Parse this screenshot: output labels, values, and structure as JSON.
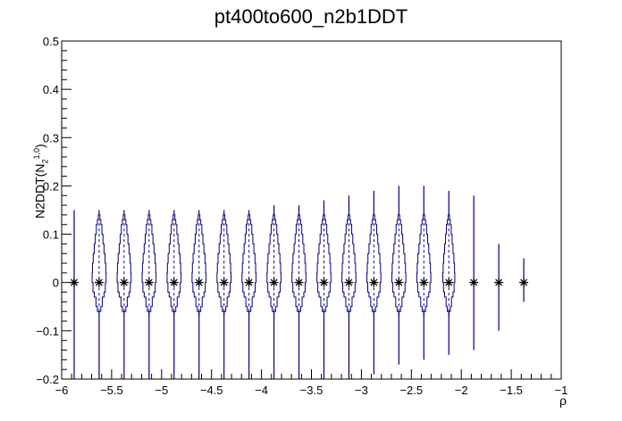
{
  "chart_data": {
    "type": "violin",
    "title": "pt400to600_n2b1DDT",
    "xlabel": "ρ",
    "ylabel": {
      "base": "N2DDT(N",
      "sub": "2",
      "sup": "1,0",
      "close": ")"
    },
    "xlim": [
      -6,
      -1
    ],
    "ylim": [
      -0.2,
      0.5
    ],
    "xticks": [
      -6,
      -5.5,
      -5,
      -4.5,
      -4,
      -3.5,
      -3,
      -2.5,
      -2,
      -1.5,
      -1
    ],
    "xtick_labels": [
      "−6",
      "−5.5",
      "−5",
      "−4.5",
      "−4",
      "−3.5",
      "−3",
      "−2.5",
      "−2",
      "−1.5",
      "−1"
    ],
    "yticks": [
      -0.2,
      -0.1,
      0,
      0.1,
      0.2,
      0.3,
      0.4,
      0.5
    ],
    "ytick_labels": [
      "−0.2",
      "−0.1",
      "0",
      "0.1",
      "0.2",
      "0.3",
      "0.4",
      "0.5"
    ],
    "grid": false,
    "colors": {
      "violin": "#00007f",
      "median": "#000000",
      "axis": "#000000"
    },
    "bins": [
      {
        "x": -5.875,
        "median": 0.0,
        "wmin": -0.2,
        "wmax": 0.15,
        "width": 0.03,
        "violin": false
      },
      {
        "x": -5.625,
        "median": 0.0,
        "wmin": -0.2,
        "wmax": 0.15,
        "width": 0.07,
        "violin": true
      },
      {
        "x": -5.375,
        "median": 0.0,
        "wmin": -0.2,
        "wmax": 0.15,
        "width": 0.07,
        "violin": true
      },
      {
        "x": -5.125,
        "median": 0.0,
        "wmin": -0.2,
        "wmax": 0.15,
        "width": 0.07,
        "violin": true
      },
      {
        "x": -4.875,
        "median": 0.0,
        "wmin": -0.2,
        "wmax": 0.15,
        "width": 0.07,
        "violin": true
      },
      {
        "x": -4.625,
        "median": 0.0,
        "wmin": -0.2,
        "wmax": 0.15,
        "width": 0.07,
        "violin": true
      },
      {
        "x": -4.375,
        "median": 0.0,
        "wmin": -0.2,
        "wmax": 0.15,
        "width": 0.07,
        "violin": true
      },
      {
        "x": -4.125,
        "median": 0.0,
        "wmin": -0.2,
        "wmax": 0.15,
        "width": 0.07,
        "violin": true
      },
      {
        "x": -3.875,
        "median": 0.0,
        "wmin": -0.2,
        "wmax": 0.16,
        "width": 0.07,
        "violin": true
      },
      {
        "x": -3.625,
        "median": 0.0,
        "wmin": -0.2,
        "wmax": 0.16,
        "width": 0.07,
        "violin": true
      },
      {
        "x": -3.375,
        "median": 0.0,
        "wmin": -0.2,
        "wmax": 0.17,
        "width": 0.07,
        "violin": true
      },
      {
        "x": -3.125,
        "median": 0.0,
        "wmin": -0.2,
        "wmax": 0.18,
        "width": 0.07,
        "violin": true
      },
      {
        "x": -2.875,
        "median": 0.0,
        "wmin": -0.19,
        "wmax": 0.19,
        "width": 0.07,
        "violin": true
      },
      {
        "x": -2.625,
        "median": 0.0,
        "wmin": -0.17,
        "wmax": 0.2,
        "width": 0.07,
        "violin": true
      },
      {
        "x": -2.375,
        "median": 0.0,
        "wmin": -0.16,
        "wmax": 0.2,
        "width": 0.07,
        "violin": true
      },
      {
        "x": -2.125,
        "median": 0.0,
        "wmin": -0.15,
        "wmax": 0.19,
        "width": 0.06,
        "violin": true
      },
      {
        "x": -1.875,
        "median": 0.0,
        "wmin": -0.14,
        "wmax": 0.18,
        "width": 0.02,
        "violin": false
      },
      {
        "x": -1.625,
        "median": 0.0,
        "wmin": -0.1,
        "wmax": 0.08,
        "width": 0.01,
        "violin": false
      },
      {
        "x": -1.375,
        "median": 0.0,
        "wmin": -0.04,
        "wmax": 0.05,
        "width": 0.0,
        "violin": false
      }
    ]
  }
}
